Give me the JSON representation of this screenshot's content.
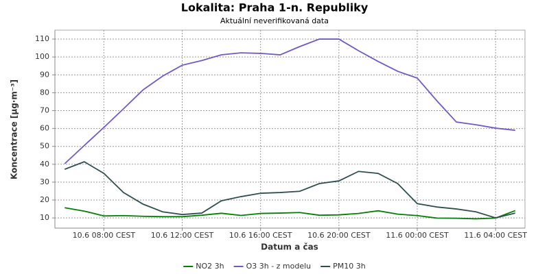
{
  "chart_data": {
    "type": "line",
    "title": "Lokalita: Praha 1-n. Republiky",
    "subtitle": "Aktuální neverifikovaná data",
    "y_label": "Koncentrace [µg·m⁻³]",
    "x_label": "Datum a čas",
    "categories": [
      null,
      null,
      "10.6 08:00 CEST",
      null,
      null,
      null,
      "10.6 12:00 CEST",
      null,
      null,
      null,
      "10.6 16:00 CEST",
      null,
      null,
      null,
      "10.6 20:00 CEST",
      null,
      null,
      null,
      "11.6 00:00 CEST",
      null,
      null,
      null,
      "11.6 04:00 CEST",
      null
    ],
    "series": [
      {
        "name": "NO2 3h",
        "color": "#008000",
        "values": [
          15.7,
          13.8,
          11.1,
          11.3,
          10.9,
          10.7,
          10.7,
          11.5,
          12.6,
          11.4,
          12.5,
          12.7,
          13,
          11.5,
          11.7,
          12.5,
          14,
          12.1,
          11.3,
          9.9,
          9.8,
          9.5,
          9.9,
          14.1
        ]
      },
      {
        "name": "O3 3h - z modelu",
        "color": "#6a5acd",
        "values": [
          40.3,
          50.5,
          60.6,
          71,
          81.6,
          89.3,
          95.4,
          98,
          101.2,
          102.3,
          102,
          101.2,
          105.8,
          110,
          110,
          103.5,
          97.5,
          92,
          88.2,
          75.5,
          63.6,
          62.1,
          60.2,
          59
        ]
      },
      {
        "name": "PM10 3h",
        "color": "#2f4f4f",
        "values": [
          37.2,
          41.4,
          34.9,
          24.2,
          17.7,
          13.4,
          11.9,
          12.7,
          19.6,
          21.9,
          23.8,
          24.2,
          24.9,
          29.2,
          30.7,
          36,
          34.9,
          29.2,
          18,
          16.1,
          15,
          13.4,
          10,
          12.7
        ]
      }
    ],
    "ylim": [
      4.3,
      115
    ],
    "yticks": [
      10,
      20,
      30,
      40,
      50,
      60,
      70,
      80,
      90,
      100,
      110
    ],
    "grid": true,
    "legend": "bottom"
  }
}
